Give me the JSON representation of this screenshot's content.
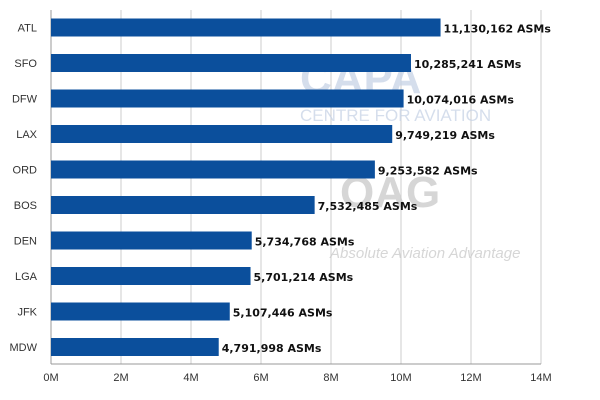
{
  "chart_data": {
    "type": "bar",
    "orientation": "horizontal",
    "categories": [
      "ATL",
      "SFO",
      "DFW",
      "LAX",
      "ORD",
      "BOS",
      "DEN",
      "LGA",
      "JFK",
      "MDW"
    ],
    "values": [
      11130162,
      10285241,
      10074016,
      9749219,
      9253582,
      7532485,
      5734768,
      5701214,
      5107446,
      4791998
    ],
    "data_labels": [
      "11,130,162 ASMs",
      "10,285,241 ASMs",
      "10,074,016 ASMs",
      "9,749,219 ASMs",
      "9,253,582 ASMs",
      "7,532,485 ASMs",
      "5,734,768 ASMs",
      "5,701,214 ASMs",
      "5,107,446 ASMs",
      "4,791,998 ASMs"
    ],
    "x_ticks": [
      {
        "value": 0,
        "label": "0M"
      },
      {
        "value": 2000000,
        "label": "2M"
      },
      {
        "value": 4000000,
        "label": "4M"
      },
      {
        "value": 6000000,
        "label": "6M"
      },
      {
        "value": 8000000,
        "label": "8M"
      },
      {
        "value": 10000000,
        "label": "10M"
      },
      {
        "value": 12000000,
        "label": "12M"
      },
      {
        "value": 14000000,
        "label": "14M"
      }
    ],
    "xlim": [
      0,
      14000000
    ],
    "title": "",
    "xlabel": "",
    "ylabel": "",
    "grid": "vertical",
    "legend": "none",
    "bar_color": "#0b4f9c",
    "grid_color": "#cccccc"
  },
  "watermark": {
    "capa_logo": "CAPA",
    "capa_tagline": "CENTRE FOR AVIATION",
    "oag_logo": "OAG",
    "oag_tagline": "Absolute Aviation Advantage",
    "color": "#c8d3e6"
  }
}
